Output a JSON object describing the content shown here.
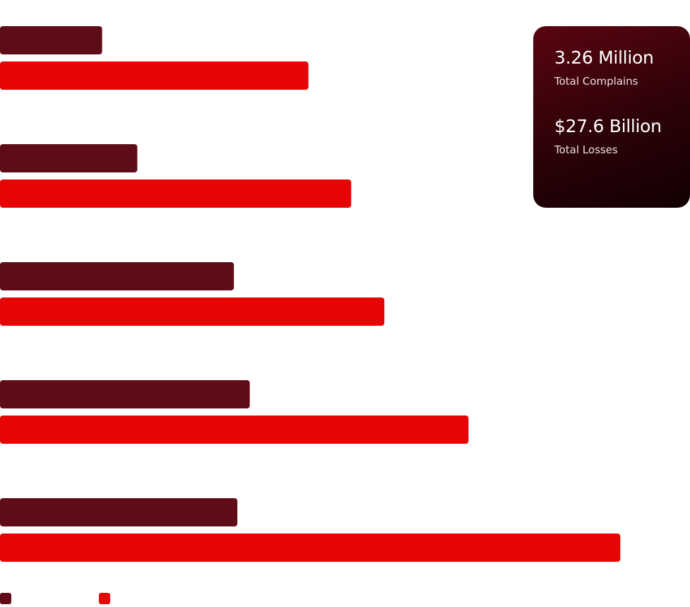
{
  "chart_data": {
    "type": "bar",
    "orientation": "horizontal",
    "categories": [
      "",
      "",
      "",
      "",
      ""
    ],
    "xlim": [
      0,
      100
    ],
    "series": [
      {
        "color": "#5e0d18",
        "values": [
          14.8,
          19.9,
          33.9,
          36.2,
          34.4
        ]
      },
      {
        "color": "#e60505",
        "values": [
          44.7,
          50.9,
          55.7,
          67.9,
          89.9
        ]
      }
    ],
    "grid": false,
    "legend": {
      "position": "bottom-left"
    }
  },
  "stats": {
    "complaints_value": "3.26 Million",
    "complaints_label": "Total Complains",
    "losses_value": "$27.6 Billion",
    "losses_label": "Total Losses"
  }
}
